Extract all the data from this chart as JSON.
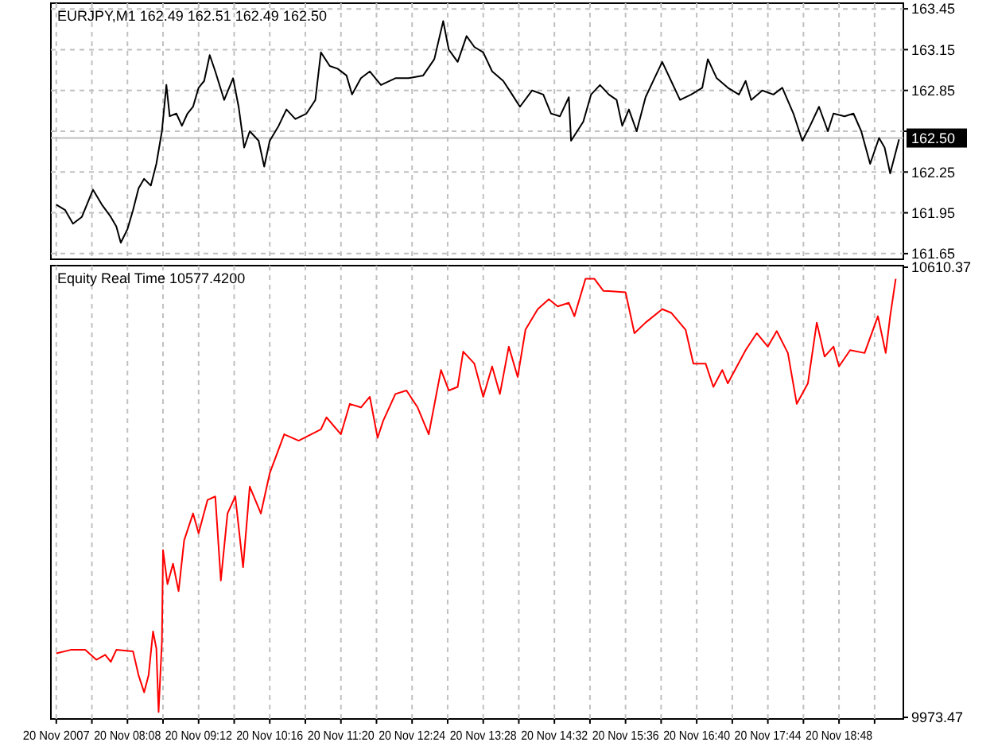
{
  "chart_data": [
    {
      "type": "line",
      "title": "EURJPY,M1 162.49 162.51 162.49 162.50",
      "tick_labels": "y",
      "grid": true,
      "x": [
        "2007-11-20T07:04",
        "2007-11-20T07:12",
        "2007-11-20T07:19",
        "2007-11-20T07:27",
        "2007-11-20T07:37",
        "2007-11-20T07:45",
        "2007-11-20T07:53",
        "2007-11-20T07:58",
        "2007-11-20T08:02",
        "2007-11-20T08:08",
        "2007-11-20T08:13",
        "2007-11-20T08:18",
        "2007-11-20T08:23",
        "2007-11-20T08:29",
        "2007-11-20T08:34",
        "2007-11-20T08:39",
        "2007-11-20T08:43",
        "2007-11-20T08:46",
        "2007-11-20T08:52",
        "2007-11-20T08:57",
        "2007-11-20T09:02",
        "2007-11-20T09:07",
        "2007-11-20T09:12",
        "2007-11-20T09:17",
        "2007-11-20T09:22",
        "2007-11-20T09:27",
        "2007-11-20T09:35",
        "2007-11-20T09:43",
        "2007-11-20T09:48",
        "2007-11-20T09:53",
        "2007-11-20T09:58",
        "2007-11-20T10:06",
        "2007-11-20T10:11",
        "2007-11-20T10:16",
        "2007-11-20T10:24",
        "2007-11-20T10:31",
        "2007-11-20T10:39",
        "2007-11-20T10:49",
        "2007-11-20T10:57",
        "2007-11-20T11:02",
        "2007-11-20T11:10",
        "2007-11-20T11:17",
        "2007-11-20T11:25",
        "2007-11-20T11:30",
        "2007-11-20T11:38",
        "2007-11-20T11:46",
        "2007-11-20T11:56",
        "2007-11-20T12:09",
        "2007-11-20T12:21",
        "2007-11-20T12:34",
        "2007-11-20T12:44",
        "2007-11-20T12:52",
        "2007-11-20T12:57",
        "2007-11-20T13:05",
        "2007-11-20T13:13",
        "2007-11-20T13:20",
        "2007-11-20T13:28",
        "2007-11-20T13:36",
        "2007-11-20T13:46",
        "2007-11-20T13:54",
        "2007-11-20T14:01",
        "2007-11-20T14:12",
        "2007-11-20T14:22",
        "2007-11-20T14:29",
        "2007-11-20T14:37",
        "2007-11-20T14:45",
        "2007-11-20T14:47",
        "2007-11-20T14:58",
        "2007-11-20T15:05",
        "2007-11-20T15:13",
        "2007-11-20T15:21",
        "2007-11-20T15:28",
        "2007-11-20T15:33",
        "2007-11-20T15:39",
        "2007-11-20T15:46",
        "2007-11-20T15:54",
        "2007-11-20T16:02",
        "2007-11-20T16:09",
        "2007-11-20T16:17",
        "2007-11-20T16:25",
        "2007-11-20T16:35",
        "2007-11-20T16:45",
        "2007-11-20T16:50",
        "2007-11-20T16:58",
        "2007-11-20T17:08",
        "2007-11-20T17:18",
        "2007-11-20T17:24",
        "2007-11-20T17:29",
        "2007-11-20T17:39",
        "2007-11-20T17:49",
        "2007-11-20T17:57",
        "2007-11-20T18:07",
        "2007-11-20T18:15",
        "2007-11-20T18:22",
        "2007-11-20T18:30",
        "2007-11-20T18:38",
        "2007-11-20T18:43",
        "2007-11-20T18:53",
        "2007-11-20T19:01",
        "2007-11-20T19:08",
        "2007-11-20T19:16",
        "2007-11-20T19:24",
        "2007-11-20T19:29",
        "2007-11-20T19:34",
        "2007-11-20T19:42"
      ],
      "series": [
        {
          "color": "#000000",
          "values": [
            162.01,
            161.97,
            161.87,
            161.92,
            162.12,
            162.01,
            161.92,
            161.85,
            161.73,
            161.83,
            161.97,
            162.13,
            162.2,
            162.15,
            162.31,
            162.55,
            162.89,
            162.66,
            162.68,
            162.59,
            162.68,
            162.73,
            162.87,
            162.92,
            163.11,
            162.99,
            162.78,
            162.94,
            162.73,
            162.43,
            162.55,
            162.48,
            162.29,
            162.48,
            162.59,
            162.71,
            162.64,
            162.68,
            162.78,
            163.13,
            163.03,
            163.01,
            162.96,
            162.82,
            162.94,
            162.99,
            162.89,
            162.94,
            162.94,
            162.96,
            163.08,
            163.36,
            163.15,
            163.06,
            163.25,
            163.17,
            163.13,
            162.99,
            162.92,
            162.82,
            162.73,
            162.85,
            162.82,
            162.68,
            162.66,
            162.8,
            162.48,
            162.62,
            162.82,
            162.89,
            162.82,
            162.78,
            162.59,
            162.71,
            162.55,
            162.8,
            162.94,
            163.06,
            162.92,
            162.78,
            162.82,
            162.87,
            163.08,
            162.94,
            162.87,
            162.82,
            162.92,
            162.78,
            162.85,
            162.82,
            162.87,
            162.68,
            162.48,
            162.59,
            162.73,
            162.55,
            162.68,
            162.66,
            162.68,
            162.55,
            162.31,
            162.5,
            162.43,
            162.24,
            162.49
          ]
        }
      ],
      "xlim": [
        "2007-11-20T07:02",
        "2007-11-20T19:43"
      ],
      "xticks": [
        {
          "value": "2007-11-20T07:04",
          "label": null
        },
        {
          "value": "2007-11-20T07:36",
          "label": null
        },
        {
          "value": "2007-11-20T08:08",
          "label": null
        },
        {
          "value": "2007-11-20T08:40",
          "label": null
        },
        {
          "value": "2007-11-20T09:12",
          "label": null
        },
        {
          "value": "2007-11-20T09:44",
          "label": null
        },
        {
          "value": "2007-11-20T10:16",
          "label": null
        },
        {
          "value": "2007-11-20T10:48",
          "label": null
        },
        {
          "value": "2007-11-20T11:20",
          "label": null
        },
        {
          "value": "2007-11-20T11:52",
          "label": null
        },
        {
          "value": "2007-11-20T12:24",
          "label": null
        },
        {
          "value": "2007-11-20T12:56",
          "label": null
        },
        {
          "value": "2007-11-20T13:28",
          "label": null
        },
        {
          "value": "2007-11-20T14:00",
          "label": null
        },
        {
          "value": "2007-11-20T14:32",
          "label": null
        },
        {
          "value": "2007-11-20T15:04",
          "label": null
        },
        {
          "value": "2007-11-20T15:36",
          "label": null
        },
        {
          "value": "2007-11-20T16:08",
          "label": null
        },
        {
          "value": "2007-11-20T16:40",
          "label": null
        },
        {
          "value": "2007-11-20T17:12",
          "label": null
        },
        {
          "value": "2007-11-20T17:44",
          "label": null
        },
        {
          "value": "2007-11-20T18:16",
          "label": null
        },
        {
          "value": "2007-11-20T18:48",
          "label": null
        },
        {
          "value": "2007-11-20T19:20",
          "label": null
        }
      ],
      "ylim": [
        161.62,
        163.48
      ],
      "yticks": [
        161.65,
        161.95,
        162.25,
        {
          "value": 162.55,
          "label": null
        },
        162.85,
        163.15,
        163.45
      ],
      "ref_lines": [
        {
          "axis": "y",
          "value": 162.5,
          "label": "162.50",
          "color": "#c0c0c0"
        }
      ]
    },
    {
      "type": "line",
      "title": "Equity Real Time 10577.4200",
      "grid": "x",
      "x": [
        "2007-11-20T07:04",
        "2007-11-20T07:17",
        "2007-11-20T07:30",
        "2007-11-20T07:40",
        "2007-11-20T07:48",
        "2007-11-20T07:53",
        "2007-11-20T07:58",
        "2007-11-20T08:13",
        "2007-11-20T08:18",
        "2007-11-20T08:23",
        "2007-11-20T08:27",
        "2007-11-20T08:31",
        "2007-11-20T08:34",
        "2007-11-20T08:36",
        "2007-11-20T08:39",
        "2007-11-20T08:40",
        "2007-11-20T08:44",
        "2007-11-20T08:49",
        "2007-11-20T08:54",
        "2007-11-20T08:59",
        "2007-11-20T09:07",
        "2007-11-20T09:12",
        "2007-11-20T09:20",
        "2007-11-20T09:27",
        "2007-11-20T09:32",
        "2007-11-20T09:38",
        "2007-11-20T09:45",
        "2007-11-20T09:52",
        "2007-11-20T09:58",
        "2007-11-20T10:08",
        "2007-11-20T10:16",
        "2007-11-20T10:29",
        "2007-11-20T10:42",
        "2007-11-20T11:02",
        "2007-11-20T11:07",
        "2007-11-20T11:20",
        "2007-11-20T11:28",
        "2007-11-20T11:38",
        "2007-11-20T11:46",
        "2007-11-20T11:53",
        "2007-11-20T11:58",
        "2007-11-20T12:09",
        "2007-11-20T12:19",
        "2007-11-20T12:29",
        "2007-11-20T12:39",
        "2007-11-20T12:50",
        "2007-11-20T12:57",
        "2007-11-20T13:05",
        "2007-11-20T13:10",
        "2007-11-20T13:20",
        "2007-11-20T13:28",
        "2007-11-20T13:36",
        "2007-11-20T13:43",
        "2007-11-20T13:51",
        "2007-11-20T13:59",
        "2007-11-20T14:06",
        "2007-11-20T14:17",
        "2007-11-20T14:27",
        "2007-11-20T14:35",
        "2007-11-20T14:45",
        "2007-11-20T14:50",
        "2007-11-20T15:00",
        "2007-11-20T15:08",
        "2007-11-20T15:16",
        "2007-11-20T15:36",
        "2007-11-20T15:44",
        "2007-11-20T15:54",
        "2007-11-20T16:09",
        "2007-11-20T16:17",
        "2007-11-20T16:30",
        "2007-11-20T16:37",
        "2007-11-20T16:48",
        "2007-11-20T16:55",
        "2007-11-20T17:03",
        "2007-11-20T17:08",
        "2007-11-20T17:24",
        "2007-11-20T17:34",
        "2007-11-20T17:44",
        "2007-11-20T17:52",
        "2007-11-20T18:02",
        "2007-11-20T18:10",
        "2007-11-20T18:20",
        "2007-11-20T18:28",
        "2007-11-20T18:35",
        "2007-11-20T18:43",
        "2007-11-20T18:48",
        "2007-11-20T18:58",
        "2007-11-20T19:11",
        "2007-11-20T19:23",
        "2007-11-20T19:30",
        "2007-11-20T19:34",
        "2007-11-20T19:39"
      ],
      "series": [
        {
          "color": "#ff0000",
          "values": [
            10064,
            10069,
            10069,
            10055,
            10062,
            10052,
            10069,
            10067,
            10033,
            10009,
            10033,
            10095,
            10071,
            9981,
            10081,
            10210,
            10162,
            10191,
            10152,
            10224,
            10262,
            10234,
            10281,
            10286,
            10167,
            10262,
            10286,
            10186,
            10300,
            10262,
            10319,
            10374,
            10365,
            10381,
            10398,
            10374,
            10417,
            10412,
            10427,
            10369,
            10393,
            10431,
            10436,
            10412,
            10374,
            10465,
            10436,
            10441,
            10491,
            10474,
            10427,
            10470,
            10431,
            10498,
            10455,
            10522,
            10551,
            10565,
            10555,
            10560,
            10541,
            10594,
            10594,
            10577,
            10575,
            10517,
            10532,
            10551,
            10546,
            10522,
            10474,
            10474,
            10441,
            10465,
            10446,
            10493,
            10517,
            10498,
            10520,
            10489,
            10417,
            10446,
            10532,
            10484,
            10498,
            10470,
            10493,
            10489,
            10541,
            10489,
            10541,
            10594
          ]
        }
      ],
      "xlim": [
        "2007-11-20T07:02",
        "2007-11-20T19:43"
      ],
      "xticks": [
        {
          "value": "2007-11-20T07:04",
          "label": "20 Nov 2007"
        },
        {
          "value": "2007-11-20T07:36",
          "label": null
        },
        {
          "value": "2007-11-20T08:08",
          "label": "20 Nov 08:08"
        },
        {
          "value": "2007-11-20T08:40",
          "label": null
        },
        {
          "value": "2007-11-20T09:12",
          "label": "20 Nov 09:12"
        },
        {
          "value": "2007-11-20T09:44",
          "label": null
        },
        {
          "value": "2007-11-20T10:16",
          "label": "20 Nov 10:16"
        },
        {
          "value": "2007-11-20T10:48",
          "label": null
        },
        {
          "value": "2007-11-20T11:20",
          "label": "20 Nov 11:20"
        },
        {
          "value": "2007-11-20T11:52",
          "label": null
        },
        {
          "value": "2007-11-20T12:24",
          "label": "20 Nov 12:24"
        },
        {
          "value": "2007-11-20T12:56",
          "label": null
        },
        {
          "value": "2007-11-20T13:28",
          "label": "20 Nov 13:28"
        },
        {
          "value": "2007-11-20T14:00",
          "label": null
        },
        {
          "value": "2007-11-20T14:32",
          "label": "20 Nov 14:32"
        },
        {
          "value": "2007-11-20T15:04",
          "label": null
        },
        {
          "value": "2007-11-20T15:36",
          "label": "20 Nov 15:36"
        },
        {
          "value": "2007-11-20T16:08",
          "label": null
        },
        {
          "value": "2007-11-20T16:40",
          "label": "20 Nov 16:40"
        },
        {
          "value": "2007-11-20T17:12",
          "label": null
        },
        {
          "value": "2007-11-20T17:44",
          "label": "20 Nov 17:44"
        },
        {
          "value": "2007-11-20T18:16",
          "label": null
        },
        {
          "value": "2007-11-20T18:48",
          "label": "20 Nov 18:48"
        },
        {
          "value": "2007-11-20T19:20",
          "label": null
        }
      ],
      "ylim": [
        9973.47,
        10610.37
      ],
      "yticks": [
        9973.47,
        10610.37
      ]
    }
  ]
}
